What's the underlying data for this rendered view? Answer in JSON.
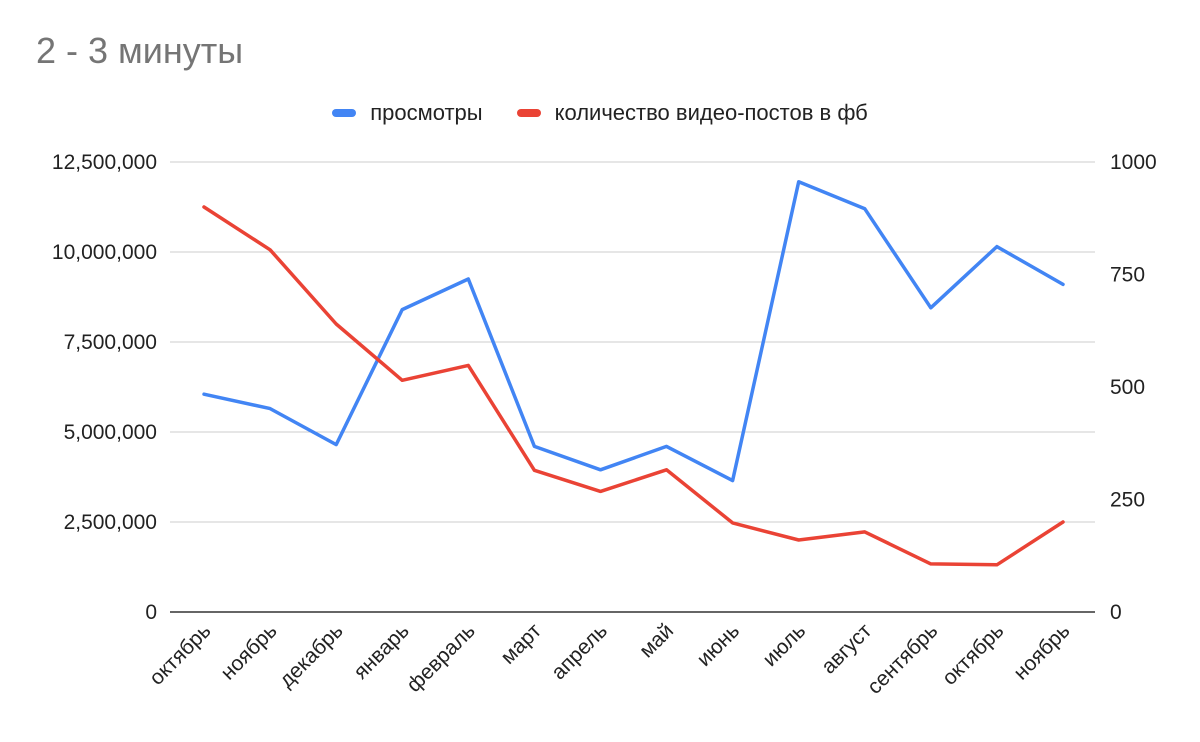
{
  "chart_data": {
    "type": "line",
    "title": "2 - 3 минуты",
    "categories": [
      "октябрь",
      "ноябрь",
      "декабрь",
      "январь",
      "февраль",
      "март",
      "апрель",
      "май",
      "июнь",
      "июль",
      "август",
      "сентябрь",
      "октябрь",
      "ноябрь"
    ],
    "series": [
      {
        "name": "просмотры",
        "axis": "left",
        "color": "#4285F4",
        "values": [
          6050000,
          5650000,
          4650000,
          8400000,
          9250000,
          4600000,
          3950000,
          4600000,
          3650000,
          11950000,
          11200000,
          8450000,
          10150000,
          9100000
        ]
      },
      {
        "name": "количество видео-постов в фб",
        "axis": "right",
        "color": "#EA4335",
        "values": [
          900,
          805,
          640,
          515,
          548,
          315,
          268,
          316,
          198,
          160,
          178,
          107,
          105,
          200
        ]
      }
    ],
    "y_left": {
      "min": 0,
      "max": 12500000,
      "ticks": [
        "0",
        "2,500,000",
        "5,000,000",
        "7,500,000",
        "10,000,000",
        "12,500,000"
      ]
    },
    "y_right": {
      "min": 0,
      "max": 1000,
      "ticks": [
        "0",
        "250",
        "500",
        "750",
        "1000"
      ]
    },
    "grid": true,
    "legend_position": "top"
  }
}
